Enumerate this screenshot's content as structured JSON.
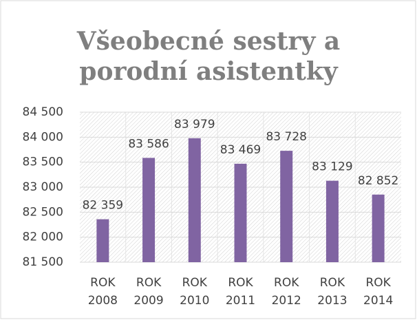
{
  "chart_data": {
    "type": "bar",
    "title": "Všeobecné sestry a porodní asistentky",
    "categories": [
      "ROK 2008",
      "ROK 2009",
      "ROK 2010",
      "ROK 2011",
      "ROK 2012",
      "ROK 2013",
      "ROK 2014"
    ],
    "values": [
      82359,
      83586,
      83979,
      83469,
      83728,
      83129,
      82852
    ],
    "value_labels": [
      "82 359",
      "83 586",
      "83 979",
      "83 469",
      "83 728",
      "83 129",
      "82 852"
    ],
    "color": "#8064a2",
    "ylim": [
      81500,
      84500
    ],
    "yticks": [
      {
        "value": 81500,
        "label": "81 500"
      },
      {
        "value": 82000,
        "label": "82 000"
      },
      {
        "value": 82500,
        "label": "82 500"
      },
      {
        "value": 83000,
        "label": "83 000"
      },
      {
        "value": 83500,
        "label": "83 500"
      },
      {
        "value": 84000,
        "label": "84 000"
      },
      {
        "value": 84500,
        "label": "84 500"
      }
    ],
    "grid": true
  }
}
